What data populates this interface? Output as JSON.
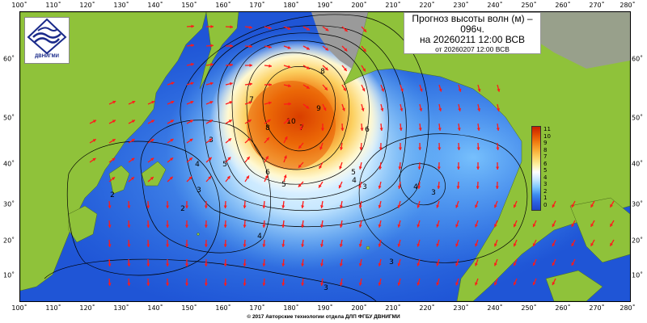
{
  "title": {
    "line1": "Прогноз высоты волн (м) –",
    "line2": "096ч.",
    "line3": "на 20260211 12:00 ВСВ",
    "line4": "от 20260207 12:00 ВСВ"
  },
  "logo": {
    "text": "ДВНИГМИ",
    "icon": "dvnigmi-logo"
  },
  "axes": {
    "lon_labels": [
      "100˚",
      "110˚",
      "120˚",
      "130˚",
      "140˚",
      "150˚",
      "160˚",
      "170˚",
      "180˚",
      "190˚",
      "200˚",
      "210˚",
      "220˚",
      "230˚",
      "240˚",
      "250˚",
      "260˚",
      "270˚",
      "280˚"
    ],
    "lat_labels": [
      "60˚",
      "50˚",
      "40˚",
      "30˚",
      "20˚",
      "10˚"
    ]
  },
  "colorbar": {
    "labels": [
      "11",
      "10",
      "9",
      "8",
      "7",
      "6",
      "5",
      "4",
      "3",
      "2",
      "1",
      "0"
    ],
    "colors": [
      "#c81e00",
      "#e04a00",
      "#f07a10",
      "#f8a830",
      "#fcd060",
      "#fff0a0",
      "#ffffff",
      "#c8e8ff",
      "#7ec8ff",
      "#3c8cf0",
      "#2a60e0",
      "#1f45c8"
    ]
  },
  "contour_labels": [
    "10",
    "9",
    "8",
    "8",
    "7",
    "7",
    "6",
    "5",
    "5",
    "4",
    "4",
    "4",
    "4",
    "3",
    "3",
    "3",
    "3",
    "3",
    "3",
    "2",
    "2",
    "6",
    "5"
  ],
  "copyright": "© 2017 Авторские технологии отдела ДЛП ФГБУ ДВНИГМИ",
  "colors": {
    "land": "#8fc23a",
    "ocean_low": "#1f55d6",
    "ocean_mid": "#5fb4f4",
    "high_wave": "#e04a00",
    "arrow": "#ff1a1a"
  }
}
